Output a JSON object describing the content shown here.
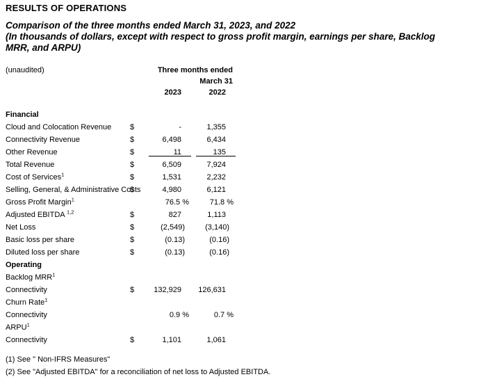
{
  "page": {
    "title": "RESULTS OF OPERATIONS",
    "subtitle_lines": [
      "Comparison of the three months ended March 31, 2023, and 2022",
      "(In thousands of dollars, except with respect to gross profit margin, earnings per share, Backlog",
      "MRR, and ARPU)"
    ]
  },
  "table": {
    "unaudited_label": "(unaudited)",
    "col_group_line1": "Three months ended",
    "col_group_line2": "March 31",
    "col_2023": "2023",
    "col_2022": "2022",
    "rows": [
      {
        "label": "Financial",
        "dollar": "",
        "y2023": "",
        "y2022": ""
      },
      {
        "label": "Cloud and Colocation Revenue",
        "dollar": "$",
        "y2023": "-",
        "y2022": "1,355"
      },
      {
        "label": "Connectivity Revenue",
        "dollar": "$",
        "y2023": "6,498",
        "y2022": "6,434"
      },
      {
        "label": "Other Revenue",
        "dollar": "$",
        "y2023": "11",
        "y2022": "135"
      },
      {
        "label": "Total Revenue",
        "dollar": "$",
        "y2023": "6,509",
        "y2022": "7,924"
      },
      {
        "label": "Cost of Services",
        "sup": "1",
        "dollar": "$",
        "y2023": "1,531",
        "y2022": "2,232"
      },
      {
        "label": "Selling, General, & Administrative Costs",
        "dollar": "$",
        "y2023": "4,980",
        "y2022": "6,121"
      },
      {
        "label": "Gross Profit Margin",
        "sup": "1",
        "dollar": "",
        "y2023": "76.5 %",
        "y2022": "71.8 %"
      },
      {
        "label": "Adjusted EBITDA ",
        "sup": "1,2",
        "dollar": "$",
        "y2023": "827",
        "y2022": "1,113"
      },
      {
        "label": "Net Loss",
        "dollar": "$",
        "y2023": "(2,549)",
        "y2022": "(3,140)"
      },
      {
        "label": "Basic loss per share",
        "dollar": "$",
        "y2023": "(0.13)",
        "y2022": "(0.16)"
      },
      {
        "label": "Diluted loss per share",
        "dollar": "$",
        "y2023": "(0.13)",
        "y2022": "(0.16)"
      },
      {
        "label": "Operating",
        "dollar": "",
        "y2023": "",
        "y2022": ""
      },
      {
        "label": "Backlog MRR",
        "sup": "1",
        "dollar": "",
        "y2023": "",
        "y2022": ""
      },
      {
        "label": "Connectivity",
        "dollar": "$",
        "y2023": "132,929",
        "y2022": "126,631"
      },
      {
        "label": "Churn Rate",
        "sup": "1",
        "dollar": "",
        "y2023": "",
        "y2022": ""
      },
      {
        "label": "Connectivity",
        "dollar": "",
        "y2023": "0.9 %",
        "y2022": "0.7 %"
      },
      {
        "label": "ARPU",
        "sup": "1",
        "dollar": "",
        "y2023": "",
        "y2022": ""
      },
      {
        "label": "Connectivity",
        "dollar": "$",
        "y2023": "1,101",
        "y2022": "1,061"
      }
    ]
  },
  "footnotes": [
    "(1) See \" Non-IFRS Measures\"",
    "(2) See \"Adjusted EBITDA\" for a reconciliation of net loss to Adjusted EBITDA."
  ]
}
